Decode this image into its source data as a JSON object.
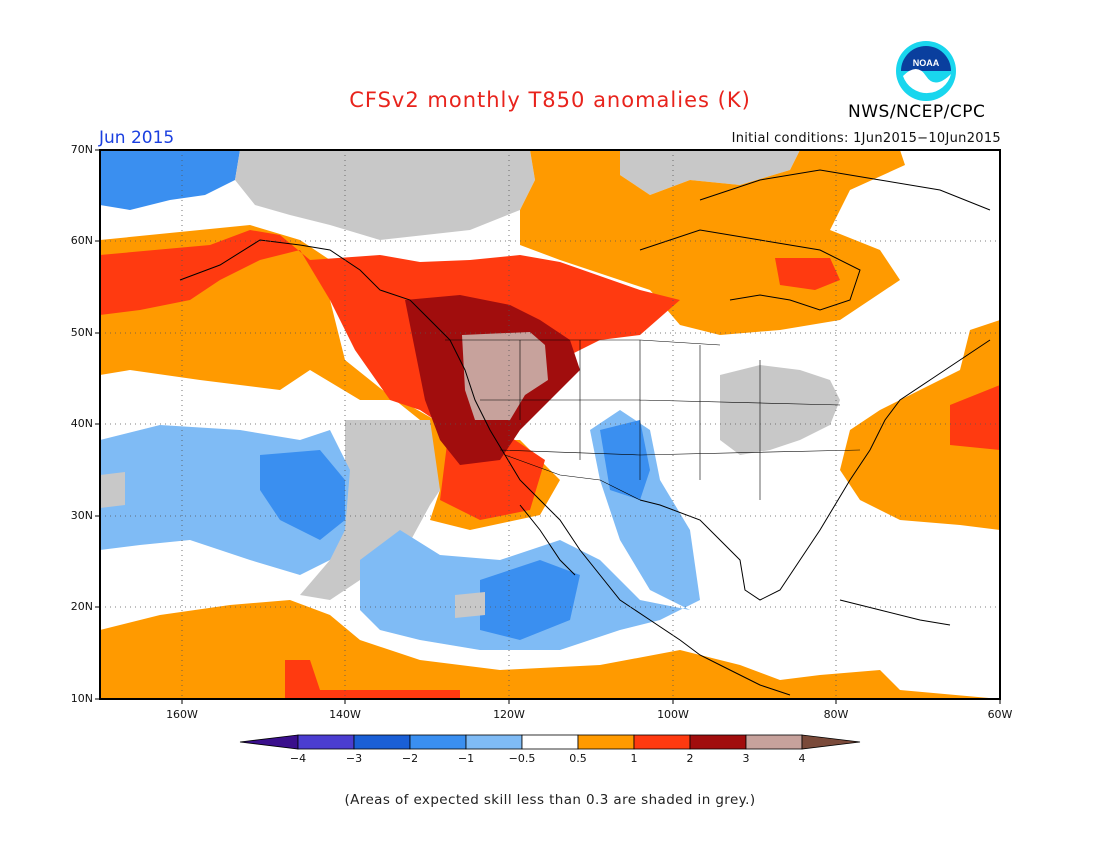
{
  "header": {
    "title": "CFSv2 monthly T850 anomalies (K)",
    "month": "Jun 2015",
    "initial_conditions": "Initial conditions: 1Jun2015−10Jun2015",
    "agency": "NWS/NCEP/CPC",
    "logo_text": "NOAA"
  },
  "axes": {
    "y_labels": [
      "70N",
      "60N",
      "50N",
      "40N",
      "30N",
      "20N",
      "10N"
    ],
    "x_labels": [
      "160W",
      "140W",
      "120W",
      "100W",
      "80W",
      "60W"
    ]
  },
  "colorbar": {
    "labels": [
      "−4",
      "−3",
      "−2",
      "−1",
      "−0.5",
      "0.5",
      "1",
      "2",
      "3",
      "4"
    ],
    "colors": [
      "#3a0f8c",
      "#4b3dd0",
      "#1a5fd6",
      "#3a8ff0",
      "#7fbbf5",
      "#ffffff",
      "#ff9a00",
      "#ff3a10",
      "#a10d0d",
      "#c7a29c",
      "#7a4a3a"
    ]
  },
  "legend_note": "(Areas of expected skill less than 0.3 are shaded in grey.)",
  "colors": {
    "grey_low_skill": "#c8c8c8",
    "title_red": "#e8231c",
    "month_blue": "#1a3fe0"
  }
}
